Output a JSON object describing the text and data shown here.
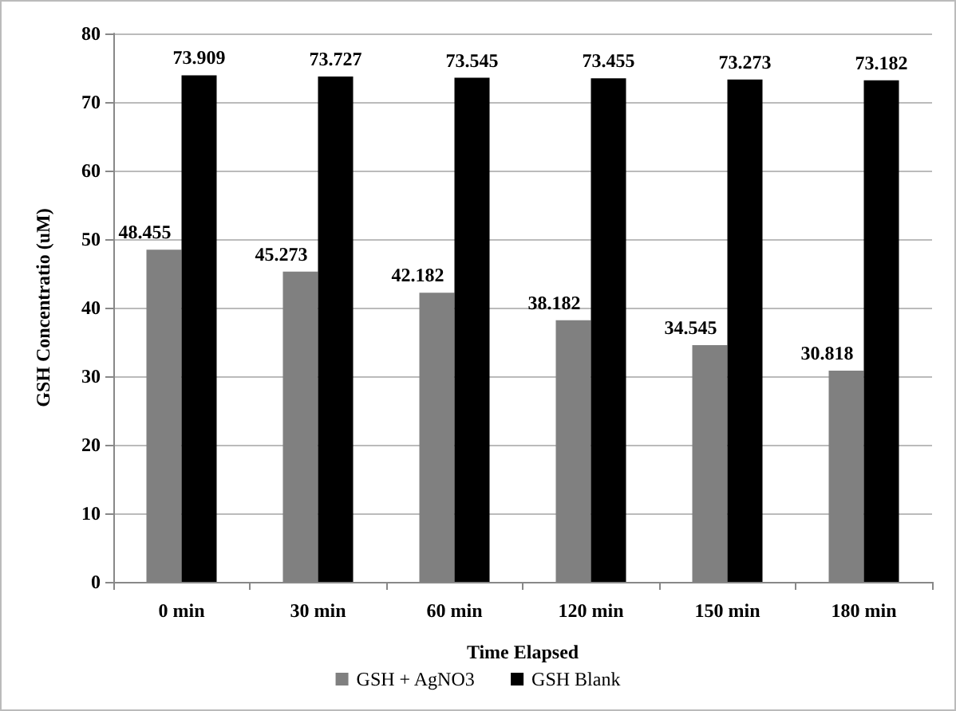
{
  "chart_data": {
    "type": "bar",
    "xlabel": "Time Elapsed",
    "ylabel": "GSH Concentratio (uM)",
    "categories": [
      "0 min",
      "30 min",
      "60 min",
      "120 min",
      "150 min",
      "180 min"
    ],
    "series": [
      {
        "name": "GSH + AgNO3",
        "color": "#808080",
        "values": [
          48.455,
          45.273,
          42.182,
          38.182,
          34.545,
          30.818
        ]
      },
      {
        "name": "GSH Blank",
        "color": "#000000",
        "values": [
          73.909,
          73.727,
          73.545,
          73.455,
          73.273,
          73.182
        ]
      }
    ],
    "ylim": [
      0,
      80
    ],
    "yticks": [
      0,
      10,
      20,
      30,
      40,
      50,
      60,
      70,
      80
    ],
    "grid": "y",
    "legend": "bottom",
    "data_labels": true
  }
}
